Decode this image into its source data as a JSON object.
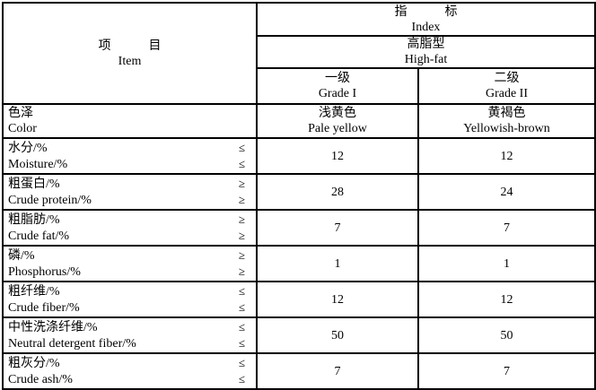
{
  "table": {
    "header": {
      "item_cn": "项　　　目",
      "item_en": "Item",
      "index_cn": "指　　　标",
      "index_en": "Index",
      "type_cn": "高脂型",
      "type_en": "High-fat",
      "grade1_cn": "一级",
      "grade1_en": "Grade I",
      "grade2_cn": "二级",
      "grade2_en": "Grade II"
    },
    "rows": [
      {
        "cn": "色泽",
        "en": "Color",
        "sym": "",
        "g1": [
          "浅黄色",
          "Pale yellow"
        ],
        "g2": [
          "黄褐色",
          "Yellowish-brown"
        ]
      },
      {
        "cn": "水分/%",
        "en": "Moisture/%",
        "sym": "≤",
        "g1": [
          "12"
        ],
        "g2": [
          "12"
        ]
      },
      {
        "cn": "粗蛋白/%",
        "en": "Crude protein/%",
        "sym": "≥",
        "g1": [
          "28"
        ],
        "g2": [
          "24"
        ]
      },
      {
        "cn": "粗脂肪/%",
        "en": "Crude fat/%",
        "sym": "≥",
        "g1": [
          "7"
        ],
        "g2": [
          "7"
        ]
      },
      {
        "cn": "磷/%",
        "en": "Phosphorus/%",
        "sym": "≥",
        "g1": [
          "1"
        ],
        "g2": [
          "1"
        ]
      },
      {
        "cn": "粗纤维/%",
        "en": "Crude fiber/%",
        "sym": "≤",
        "g1": [
          "12"
        ],
        "g2": [
          "12"
        ]
      },
      {
        "cn": "中性洗涤纤维/%",
        "en": "Neutral detergent fiber/%",
        "sym": "≤",
        "g1": [
          "50"
        ],
        "g2": [
          "50"
        ]
      },
      {
        "cn": "粗灰分/%",
        "en": "Crude ash/%",
        "sym": "≤",
        "g1": [
          "7"
        ],
        "g2": [
          "7"
        ]
      }
    ]
  }
}
